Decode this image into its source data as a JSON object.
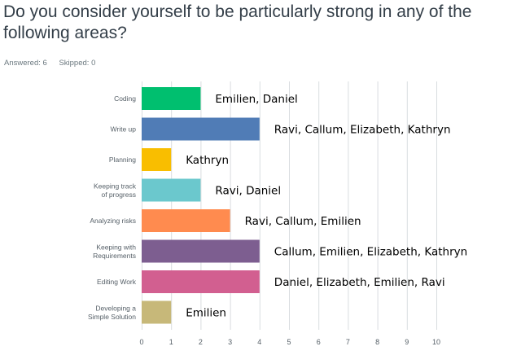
{
  "question": "Do you consider yourself to be particularly strong in any of the following areas?",
  "stats": {
    "answered": "Answered: 6",
    "skipped": "Skipped: 0"
  },
  "chart_data": {
    "type": "bar",
    "orientation": "horizontal",
    "categories": [
      [
        "Coding"
      ],
      [
        "Write up"
      ],
      [
        "Planning"
      ],
      [
        "Keeping track",
        "of progress"
      ],
      [
        "Analyzing risks"
      ],
      [
        "Keeping with",
        "Requirements"
      ],
      [
        "Editing Work"
      ],
      [
        "Developing a",
        "Simple Solution"
      ]
    ],
    "values": [
      2,
      4,
      1,
      2,
      3,
      4,
      4,
      1
    ],
    "annotations": [
      "Emilien, Daniel",
      "Ravi, Callum, Elizabeth, Kathryn",
      "Kathryn",
      "Ravi, Daniel",
      "Ravi, Callum, Emilien",
      "Callum, Emilien, Elizabeth, Kathryn",
      "Daniel, Elizabeth, Emilien, Ravi",
      "Emilien"
    ],
    "colors": [
      "#00bf6f",
      "#507cb6",
      "#f9be00",
      "#6bc8cd",
      "#ff8b4f",
      "#7d5e90",
      "#d25f90",
      "#c7b879"
    ],
    "xlim": [
      0,
      10
    ],
    "xticks": [
      0,
      1,
      2,
      3,
      4,
      5,
      6,
      7,
      8,
      9,
      10
    ],
    "grid": true,
    "title": "",
    "xlabel": "",
    "ylabel": ""
  }
}
